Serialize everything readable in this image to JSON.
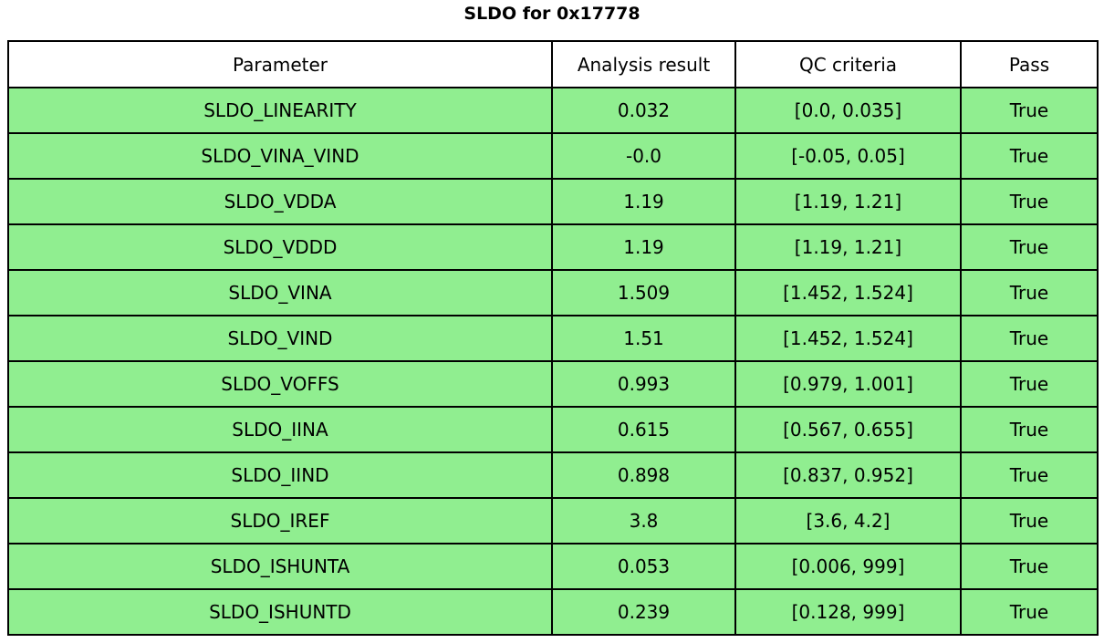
{
  "title": "SLDO for 0x17778",
  "colors": {
    "background": "#ffffff",
    "header_bg": "#ffffff",
    "row_bg": "#90ee90",
    "border": "#000000",
    "text": "#000000"
  },
  "chart_data": {
    "type": "table",
    "title": "SLDO for 0x17778",
    "columns": [
      "Parameter",
      "Analysis result",
      "QC criteria",
      "Pass"
    ],
    "rows": [
      [
        "SLDO_LINEARITY",
        "0.032",
        "[0.0, 0.035]",
        "True"
      ],
      [
        "SLDO_VINA_VIND",
        "-0.0",
        "[-0.05, 0.05]",
        "True"
      ],
      [
        "SLDO_VDDA",
        "1.19",
        "[1.19, 1.21]",
        "True"
      ],
      [
        "SLDO_VDDD",
        "1.19",
        "[1.19, 1.21]",
        "True"
      ],
      [
        "SLDO_VINA",
        "1.509",
        "[1.452, 1.524]",
        "True"
      ],
      [
        "SLDO_VIND",
        "1.51",
        "[1.452, 1.524]",
        "True"
      ],
      [
        "SLDO_VOFFS",
        "0.993",
        "[0.979, 1.001]",
        "True"
      ],
      [
        "SLDO_IINA",
        "0.615",
        "[0.567, 0.655]",
        "True"
      ],
      [
        "SLDO_IIND",
        "0.898",
        "[0.837, 0.952]",
        "True"
      ],
      [
        "SLDO_IREF",
        "3.8",
        "[3.6, 4.2]",
        "True"
      ],
      [
        "SLDO_ISHUNTA",
        "0.053",
        "[0.006, 999]",
        "True"
      ],
      [
        "SLDO_ISHUNTD",
        "0.239",
        "[0.128, 999]",
        "True"
      ]
    ]
  }
}
